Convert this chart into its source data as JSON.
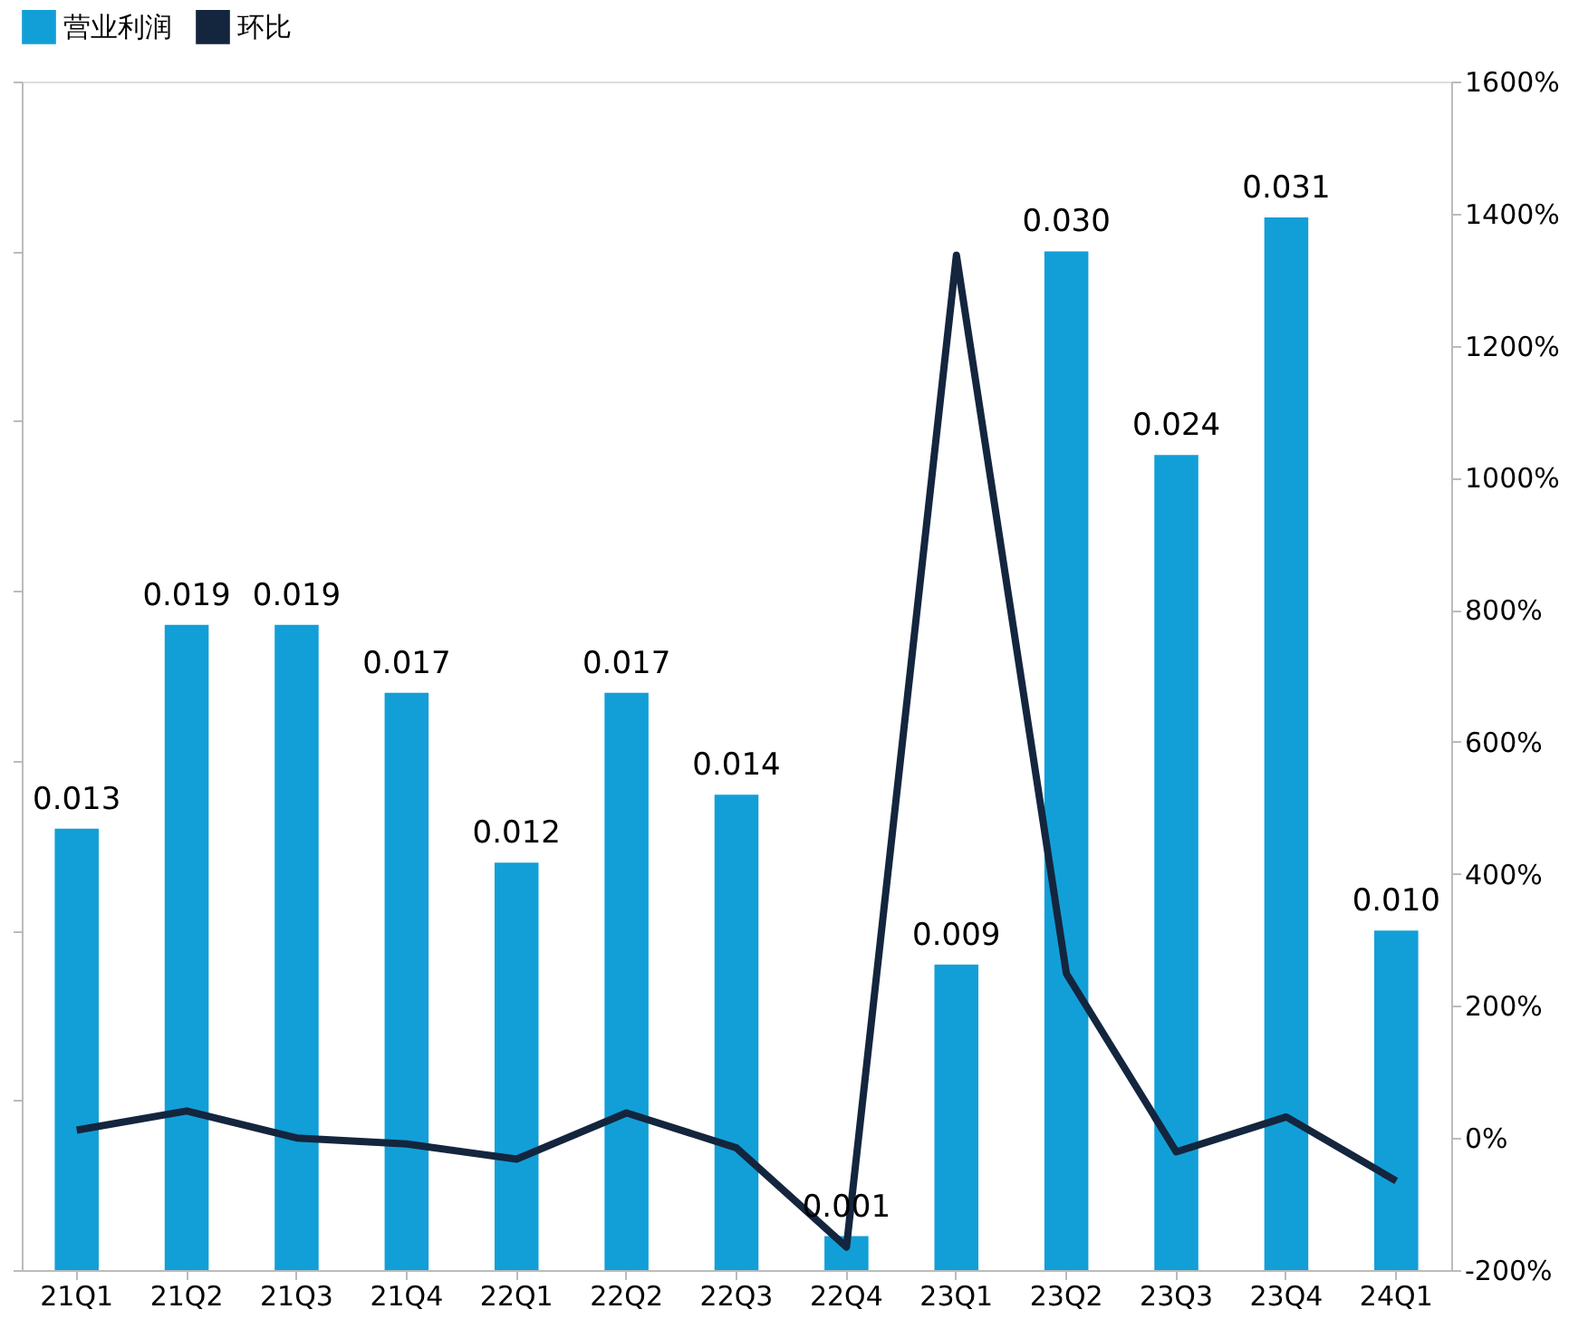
{
  "chart_data": {
    "type": "bar",
    "categories": [
      "21Q1",
      "21Q2",
      "21Q3",
      "21Q4",
      "22Q1",
      "22Q2",
      "22Q3",
      "22Q4",
      "23Q1",
      "23Q2",
      "23Q3",
      "23Q4",
      "24Q1"
    ],
    "series": [
      {
        "name": "营业利润",
        "color": "#129fd7",
        "values": [
          0.013,
          0.019,
          0.019,
          0.017,
          0.012,
          0.017,
          0.014,
          0.001,
          0.009,
          0.03,
          0.024,
          0.031,
          0.01
        ],
        "value_labels": [
          "0.013",
          "0.019",
          "0.019",
          "0.017",
          "0.012",
          "0.017",
          "0.014",
          "0.001",
          "0.009",
          "0.030",
          "0.024",
          "0.031",
          "0.010"
        ]
      },
      {
        "name": "环比",
        "type": "line",
        "axis": "y2",
        "color": "#14253e",
        "values": [
          12,
          41,
          0,
          -9,
          -32,
          38,
          -15,
          -165,
          1337,
          249,
          -21,
          32,
          -65
        ]
      }
    ],
    "ylim": [
      0,
      0.035
    ],
    "yticks": [
      {
        "value": 0,
        "label": null
      },
      {
        "value": 0.005,
        "label": null
      },
      {
        "value": 0.01,
        "label": null
      },
      {
        "value": 0.015,
        "label": null
      },
      {
        "value": 0.02,
        "label": null
      },
      {
        "value": 0.025,
        "label": null
      },
      {
        "value": 0.03,
        "label": null
      },
      {
        "value": 0.035,
        "label": null
      }
    ],
    "y2lim": [
      -200,
      1600
    ],
    "y2ticks": [
      {
        "value": -200,
        "label": "-200%"
      },
      {
        "value": 0,
        "label": "0%"
      },
      {
        "value": 200,
        "label": "200%"
      },
      {
        "value": 400,
        "label": "400%"
      },
      {
        "value": 600,
        "label": "600%"
      },
      {
        "value": 800,
        "label": "800%"
      },
      {
        "value": 1000,
        "label": "1000%"
      },
      {
        "value": 1200,
        "label": "1200%"
      },
      {
        "value": 1400,
        "label": "1400%"
      },
      {
        "value": 1600,
        "label": "1600%"
      }
    ],
    "legend": "top",
    "grid": false,
    "marker": "none",
    "line_style": "solid"
  }
}
